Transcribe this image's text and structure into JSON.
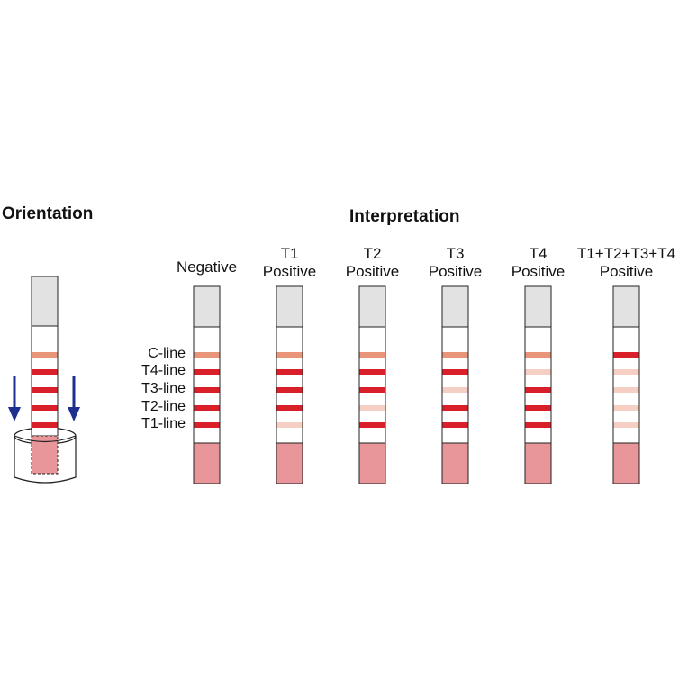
{
  "titles": {
    "orientation": "Orientation",
    "interpretation": "Interpretation"
  },
  "line_labels": [
    "C-line",
    "T4-line",
    "T3-line",
    "T2-line",
    "T1-line"
  ],
  "columns": [
    {
      "label_line1": "",
      "label_line2": "Negative",
      "lines": {
        "C": "medium",
        "T4": "strong",
        "T3": "strong",
        "T2": "strong",
        "T1": "strong"
      }
    },
    {
      "label_line1": "T1",
      "label_line2": "Positive",
      "lines": {
        "C": "medium",
        "T4": "strong",
        "T3": "strong",
        "T2": "strong",
        "T1": "faint"
      }
    },
    {
      "label_line1": "T2",
      "label_line2": "Positive",
      "lines": {
        "C": "medium",
        "T4": "strong",
        "T3": "strong",
        "T2": "faint",
        "T1": "strong"
      }
    },
    {
      "label_line1": "T3",
      "label_line2": "Positive",
      "lines": {
        "C": "medium",
        "T4": "strong",
        "T3": "faint",
        "T2": "strong",
        "T1": "strong"
      }
    },
    {
      "label_line1": "T4",
      "label_line2": "Positive",
      "lines": {
        "C": "medium",
        "T4": "faint",
        "T3": "strong",
        "T2": "strong",
        "T1": "strong"
      }
    },
    {
      "label_line1": "T1+T2+T3+T4",
      "label_line2": "Positive",
      "lines": {
        "C": "strong",
        "T4": "faint",
        "T3": "faint",
        "T2": "faint",
        "T1": "faint"
      }
    }
  ],
  "orientation_strip": {
    "lines": {
      "C": "medium",
      "T4": "strong",
      "T3": "strong",
      "T2": "strong",
      "T1": "strong"
    }
  },
  "colors": {
    "strong": "#d9202a",
    "medium": "#e9957a",
    "faint": "#f6cfc4",
    "cap": "#e2e2e2",
    "sample_pad": "#e8969a",
    "arrow": "#1f2f8f",
    "outline": "#222222"
  }
}
